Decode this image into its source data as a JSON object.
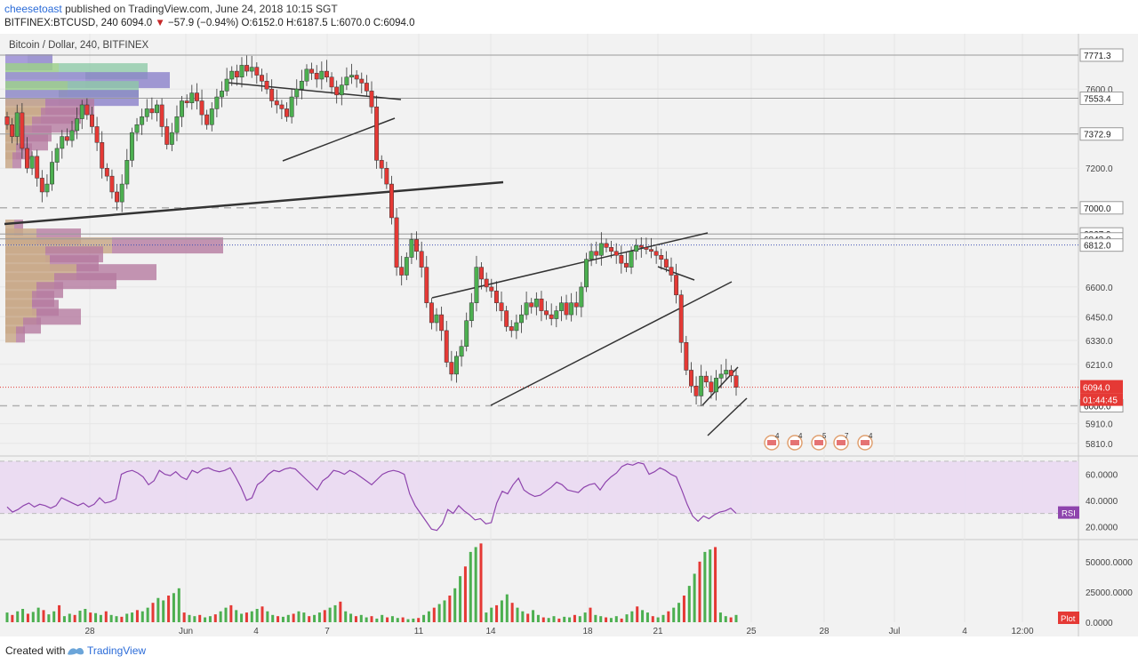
{
  "header": {
    "author": "cheesetoast",
    "published": "published on TradingView.com, June 24, 2018 10:15 SGT",
    "symbol": "BITFINEX:BTCUSD, 240",
    "price": "6094.0",
    "change": "−57.9 (−0.94%)",
    "ohlc": "O:6152.0 H:6187.5 L:6070.0 C:6094.0"
  },
  "footer": {
    "created_with": "Created with",
    "brand": "TradingView"
  },
  "colors": {
    "up": "#4caf50",
    "down": "#e53935",
    "rsi": "#8e44ad",
    "accent": "#2a6bd8"
  },
  "chart_data": [
    {
      "type": "candlestick",
      "title": "Bitcoin / Dollar, 240, BITFINEX",
      "x_tick_labels": [
        "28",
        "Jun",
        "4",
        "7",
        "11",
        "14",
        "18",
        "21",
        "25",
        "28",
        "Jul",
        "4",
        "12:00"
      ],
      "y_tick_labels": [
        "7600.0",
        "7200.0",
        "6600.0",
        "6450.0",
        "6330.0",
        "6210.0",
        "5910.0",
        "5810.0"
      ],
      "ylim": [
        5760,
        7870
      ],
      "price_lines": [
        {
          "label": "7771.3",
          "value": 7771.3
        },
        {
          "label": "7553.4",
          "value": 7553.4
        },
        {
          "label": "7372.9",
          "value": 7372.9
        },
        {
          "label": "7000.0",
          "value": 7000.0,
          "dashed": true
        },
        {
          "label": "6867.9",
          "value": 6867.9
        },
        {
          "label": "6843.0",
          "value": 6843.0
        },
        {
          "label": "6812.0",
          "value": 6812.0,
          "dotted": true
        },
        {
          "label": "6000.0",
          "value": 6000.0,
          "dashed": true
        }
      ],
      "last_price": {
        "label": "6094.0",
        "value": 6094.0
      },
      "countdown": "01:44:45",
      "event_markers": [
        "4",
        "4",
        "5",
        "7",
        "4"
      ],
      "closes": [
        7420,
        7360,
        7480,
        7300,
        7200,
        7260,
        7150,
        7080,
        7120,
        7230,
        7300,
        7360,
        7340,
        7390,
        7450,
        7520,
        7470,
        7410,
        7330,
        7200,
        7160,
        7080,
        7030,
        7120,
        7240,
        7380,
        7420,
        7460,
        7500,
        7480,
        7520,
        7410,
        7320,
        7380,
        7460,
        7540,
        7530,
        7580,
        7540,
        7470,
        7420,
        7500,
        7560,
        7590,
        7650,
        7690,
        7660,
        7720,
        7690,
        7710,
        7670,
        7640,
        7600,
        7540,
        7520,
        7500,
        7460,
        7560,
        7600,
        7640,
        7700,
        7680,
        7650,
        7690,
        7660,
        7610,
        7570,
        7620,
        7660,
        7670,
        7650,
        7630,
        7590,
        7510,
        7240,
        7200,
        7120,
        6950,
        6700,
        6660,
        6750,
        6840,
        6780,
        6700,
        6520,
        6420,
        6460,
        6380,
        6220,
        6160,
        6250,
        6300,
        6430,
        6520,
        6700,
        6640,
        6600,
        6580,
        6520,
        6480,
        6400,
        6380,
        6420,
        6460,
        6520,
        6500,
        6540,
        6480,
        6460,
        6440,
        6480,
        6520,
        6460,
        6520,
        6500,
        6600,
        6740,
        6780,
        6760,
        6820,
        6800,
        6780,
        6760,
        6720,
        6700,
        6780,
        6810,
        6800,
        6790,
        6780,
        6760,
        6740,
        6700,
        6660,
        6560,
        6320,
        6180,
        6100,
        6050,
        6150,
        6120,
        6070,
        6140,
        6160,
        6180,
        6152,
        6094
      ],
      "volume_profile": [
        {
          "value": 7735,
          "a": 25,
          "b": 28,
          "c": "purple"
        },
        {
          "value": 7690,
          "a": 60,
          "b": 100,
          "c": "green"
        },
        {
          "value": 7645,
          "a": 90,
          "b": 95,
          "c": "purple"
        },
        {
          "value": 7600,
          "a": 70,
          "b": 80,
          "c": "green"
        },
        {
          "value": 7555,
          "a": 60,
          "b": 90,
          "c": "purple"
        },
        {
          "value": 7510,
          "a": 45,
          "b": 55,
          "c": "brown"
        },
        {
          "value": 7465,
          "a": 40,
          "b": 45,
          "c": "brown"
        },
        {
          "value": 7420,
          "a": 30,
          "b": 50,
          "c": "brown"
        },
        {
          "value": 7375,
          "a": 20,
          "b": 32,
          "c": "brown"
        },
        {
          "value": 7330,
          "a": 18,
          "b": 30,
          "c": "brown"
        },
        {
          "value": 7285,
          "a": 12,
          "b": 18,
          "c": "brown"
        },
        {
          "value": 7240,
          "a": 8,
          "b": 10,
          "c": "brown"
        },
        {
          "value": 6900,
          "a": 10,
          "b": 10,
          "c": "brown"
        },
        {
          "value": 6855,
          "a": 35,
          "b": 50,
          "c": "brown"
        },
        {
          "value": 6810,
          "a": 120,
          "b": 125,
          "c": "brown"
        },
        {
          "value": 6765,
          "a": 45,
          "b": 65,
          "c": "brown"
        },
        {
          "value": 6720,
          "a": 50,
          "b": 55,
          "c": "brown"
        },
        {
          "value": 6675,
          "a": 80,
          "b": 90,
          "c": "brown"
        },
        {
          "value": 6630,
          "a": 55,
          "b": 70,
          "c": "brown"
        },
        {
          "value": 6585,
          "a": 35,
          "b": 30,
          "c": "brown"
        },
        {
          "value": 6540,
          "a": 30,
          "b": 25,
          "c": "brown"
        },
        {
          "value": 6495,
          "a": 30,
          "b": 30,
          "c": "brown"
        },
        {
          "value": 6450,
          "a": 35,
          "b": 50,
          "c": "brown"
        },
        {
          "value": 6405,
          "a": 20,
          "b": 20,
          "c": "brown"
        },
        {
          "value": 6360,
          "a": 12,
          "b": 10,
          "c": "brown"
        }
      ]
    },
    {
      "type": "line",
      "series_label": "RSI",
      "y_tick_labels": [
        "60.0000",
        "40.0000",
        "20.0000"
      ],
      "ylim": [
        12,
        72
      ],
      "band": [
        30,
        70
      ],
      "values": [
        35,
        31,
        33,
        36,
        38,
        35,
        37,
        36,
        34,
        36,
        42,
        40,
        38,
        36,
        38,
        35,
        37,
        42,
        38,
        39,
        41,
        60,
        62,
        63,
        61,
        58,
        52,
        55,
        63,
        60,
        59,
        62,
        58,
        56,
        63,
        61,
        64,
        65,
        63,
        62,
        63,
        65,
        58,
        50,
        40,
        42,
        52,
        55,
        60,
        63,
        62,
        64,
        65,
        64,
        60,
        56,
        52,
        48,
        55,
        58,
        63,
        62,
        60,
        63,
        61,
        58,
        55,
        52,
        56,
        60,
        62,
        63,
        62,
        60,
        45,
        36,
        30,
        24,
        18,
        17,
        22,
        33,
        30,
        36,
        32,
        29,
        25,
        26,
        22,
        23,
        38,
        47,
        45,
        52,
        57,
        48,
        45,
        43,
        44,
        47,
        50,
        54,
        52,
        48,
        47,
        46,
        50,
        52,
        53,
        48,
        54,
        58,
        61,
        66,
        68,
        67,
        69,
        68,
        60,
        62,
        65,
        63,
        60,
        58,
        48,
        37,
        28,
        24,
        28,
        26,
        29,
        31,
        32,
        34,
        30
      ]
    },
    {
      "type": "bar",
      "series_label": "Plot",
      "y_tick_labels": [
        "50000.0000",
        "25000.0000",
        "0.0000"
      ],
      "ylim": [
        0,
        66000
      ],
      "values": [
        8000,
        6000,
        9000,
        11000,
        7000,
        8500,
        12000,
        10000,
        6500,
        9000,
        14000,
        5000,
        7000,
        6000,
        9500,
        11000,
        8000,
        7500,
        6000,
        9000,
        6000,
        5000,
        4500,
        7000,
        8000,
        10000,
        9000,
        12000,
        16000,
        20000,
        18000,
        22000,
        24000,
        28000,
        8000,
        6000,
        5000,
        6000,
        4000,
        5000,
        6500,
        9000,
        12000,
        14000,
        10000,
        7000,
        8000,
        9000,
        11000,
        13000,
        9000,
        6000,
        5000,
        4500,
        6000,
        7000,
        9000,
        8000,
        5000,
        6000,
        8000,
        10000,
        12000,
        14000,
        17000,
        9000,
        7000,
        5000,
        6000,
        4000,
        5000,
        3000,
        6000,
        4000,
        5000,
        3500,
        4000,
        2500,
        3000,
        3500,
        6000,
        9000,
        12000,
        15000,
        18000,
        22000,
        28000,
        38000,
        46000,
        58000,
        62000,
        65000,
        8000,
        12000,
        14000,
        18000,
        23000,
        16000,
        12000,
        9000,
        7000,
        10000,
        6000,
        4000,
        3500,
        5000,
        3000,
        4500,
        4000,
        6000,
        5000,
        8000,
        12000,
        6000,
        5000,
        4000,
        3500,
        5000,
        3000,
        6500,
        9000,
        13000,
        10000,
        8000,
        5000,
        4000,
        6000,
        9000,
        12000,
        16000,
        22000,
        30000,
        40000,
        50000,
        58000,
        60000,
        62000,
        8000,
        5000,
        4000,
        6000
      ]
    }
  ]
}
